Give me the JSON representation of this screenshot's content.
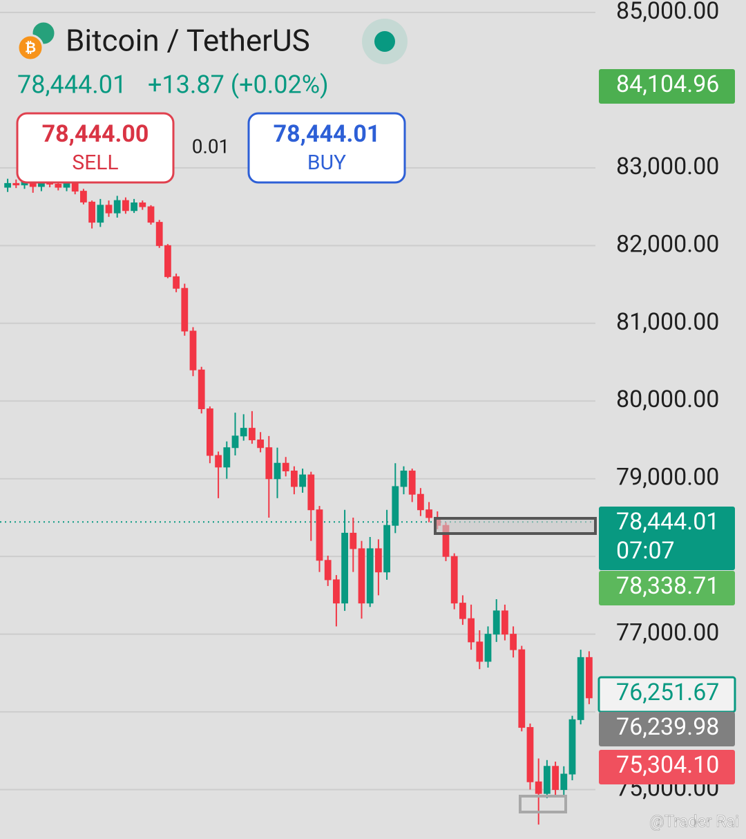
{
  "header": {
    "title": "Bitcoin / TetherUS",
    "price": "78,444.01",
    "change": "+13.87 (+0.02%)",
    "sell_price": "78,444.00",
    "sell_label": "SELL",
    "spread": "0.01",
    "buy_price": "78,444.01",
    "buy_label": "BUY",
    "watermark": "@Trader Rai"
  },
  "chart_data": {
    "type": "candlestick",
    "up_color": "#089981",
    "down_color": "#f23645",
    "ylim": [
      74400,
      85160
    ],
    "yticks": [
      {
        "value": 85000,
        "label": "85,000.00"
      },
      {
        "value": 83000,
        "label": "83,000.00"
      },
      {
        "value": 82000,
        "label": "82,000.00"
      },
      {
        "value": 81000,
        "label": "81,000.00"
      },
      {
        "value": 80000,
        "label": "80,000.00"
      },
      {
        "value": 79000,
        "label": "79,000.00"
      },
      {
        "value": 77000,
        "label": "77,000.00"
      },
      {
        "value": 75000,
        "label": "75,000.00"
      }
    ],
    "ygrid": [
      78000,
      76000
    ],
    "grid": true,
    "open": [
      82750,
      82800,
      82780,
      82850,
      82760,
      82820,
      82790,
      82750,
      82800,
      82700,
      82560,
      82300,
      82520,
      82420,
      82580,
      82450,
      82550,
      82500,
      82300,
      82000,
      81600,
      81450,
      80900,
      80400,
      79900,
      79300,
      79150,
      79400,
      79550,
      79650,
      79500,
      79400,
      79000,
      79200,
      79100,
      78900,
      79050,
      78600,
      77950,
      77700,
      77400,
      78300,
      78100,
      77400,
      78100,
      77800,
      78400,
      78900,
      79100,
      78800,
      78600,
      78500,
      78400,
      78000,
      77400,
      77200,
      76900,
      76650,
      77000,
      77300,
      77000,
      76800,
      75800,
      75100,
      74950,
      75300,
      75000,
      75200,
      75900,
      76700
    ],
    "high": [
      82860,
      82850,
      82890,
      82880,
      82860,
      82850,
      82830,
      82850,
      82840,
      82730,
      82580,
      82600,
      82580,
      82640,
      82620,
      82600,
      82580,
      82520,
      82330,
      82020,
      81640,
      81510,
      80950,
      80440,
      79930,
      79350,
      79480,
      79850,
      79830,
      79870,
      79600,
      79550,
      79400,
      79280,
      79160,
      79130,
      79090,
      78650,
      78010,
      77760,
      78600,
      78500,
      78200,
      78250,
      78220,
      78600,
      79200,
      79160,
      79130,
      78880,
      78700,
      78580,
      78440,
      78040,
      77500,
      77380,
      77050,
      77100,
      77450,
      77380,
      77100,
      76850,
      75850,
      75400,
      75380,
      75360,
      75300,
      75950,
      76800,
      76780
    ],
    "low": [
      82690,
      82740,
      82730,
      82680,
      82700,
      82750,
      82710,
      82700,
      82660,
      82530,
      82220,
      82240,
      82370,
      82360,
      82410,
      82420,
      82460,
      82270,
      81970,
      81580,
      81400,
      80840,
      80320,
      79840,
      79200,
      78750,
      79000,
      79300,
      79490,
      79450,
      79340,
      78500,
      78750,
      79030,
      78800,
      78820,
      78200,
      77800,
      77620,
      77100,
      77300,
      77800,
      77200,
      77350,
      77500,
      77700,
      78300,
      78800,
      78700,
      78520,
      78440,
      78350,
      77940,
      77320,
      77120,
      76800,
      76550,
      76570,
      76900,
      76920,
      76700,
      75750,
      75000,
      74550,
      74890,
      74900,
      74920,
      75120,
      75840,
      76100
    ],
    "close": [
      82800,
      82780,
      82850,
      82760,
      82820,
      82790,
      82750,
      82800,
      82700,
      82560,
      82300,
      82520,
      82420,
      82580,
      82450,
      82550,
      82500,
      82300,
      82000,
      81600,
      81450,
      80900,
      80400,
      79900,
      79300,
      79150,
      79400,
      79550,
      79650,
      79500,
      79400,
      79000,
      79200,
      79100,
      78900,
      79050,
      78600,
      77950,
      77700,
      77400,
      78300,
      78100,
      77400,
      78100,
      77800,
      78400,
      78900,
      79100,
      78800,
      78600,
      78500,
      78400,
      78000,
      77400,
      77200,
      76900,
      76650,
      77000,
      77300,
      77000,
      76800,
      75800,
      75100,
      74950,
      75300,
      75000,
      75200,
      75900,
      76700,
      76180
    ],
    "price_labels": [
      {
        "value": 84104.96,
        "label": "84,104.96",
        "color": "#4caf50"
      },
      {
        "value": 78444.01,
        "label": "78,444.01",
        "time": "07:07",
        "color": "#089981"
      },
      {
        "value": 78338.71,
        "label": "78,338.71",
        "color": "#5cb85c"
      },
      {
        "value": 76251.67,
        "label": "76,251.67",
        "color": "#089981",
        "outline": true
      },
      {
        "value": 76239.98,
        "label": "76,239.98",
        "color": "#808080"
      },
      {
        "value": 75304.1,
        "label": "75,304.10",
        "color": "#f0505e"
      }
    ]
  }
}
